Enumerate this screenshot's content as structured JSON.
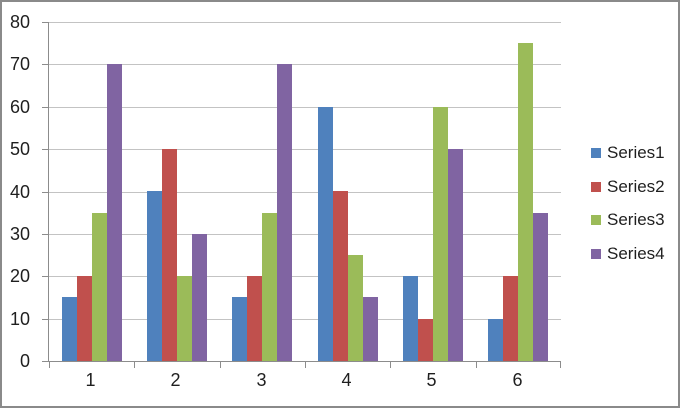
{
  "chart_data": {
    "type": "bar",
    "title": "",
    "categories": [
      "1",
      "2",
      "3",
      "4",
      "5",
      "6"
    ],
    "series": [
      {
        "name": "Series1",
        "color": "#4F81BD",
        "values": [
          15,
          40,
          15,
          60,
          20,
          10
        ]
      },
      {
        "name": "Series2",
        "color": "#C0504D",
        "values": [
          20,
          50,
          20,
          40,
          10,
          20
        ]
      },
      {
        "name": "Series3",
        "color": "#9BBB59",
        "values": [
          35,
          20,
          35,
          25,
          60,
          75
        ]
      },
      {
        "name": "Series4",
        "color": "#8064A2",
        "values": [
          70,
          30,
          70,
          15,
          50,
          35
        ]
      }
    ],
    "xlabel": "",
    "ylabel": "",
    "ylim": [
      0,
      80
    ],
    "y_tick_step": 10,
    "y_ticks": [
      0,
      10,
      20,
      30,
      40,
      50,
      60,
      70,
      80
    ],
    "grid": true,
    "legend_position": "right"
  },
  "colors": {
    "background": "#FFFFFF",
    "border": "#8A8A8A",
    "gridline": "#C3C3C3",
    "axis": "#8C8C8C",
    "text": "#1F1F1F"
  }
}
